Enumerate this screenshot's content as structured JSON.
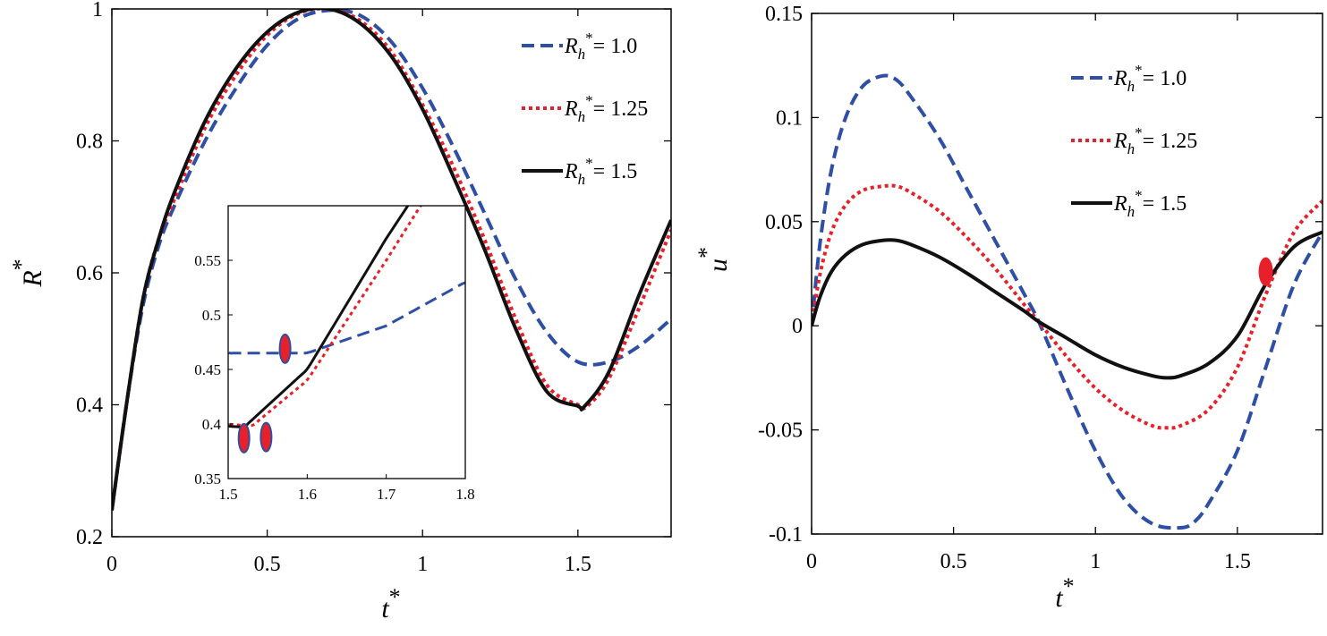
{
  "chart_data": [
    {
      "type": "line",
      "panel": "left",
      "xlabel": "t",
      "xlabel_sup": "*",
      "ylabel": "R",
      "ylabel_sup": "*",
      "xlim": [
        0,
        1.8
      ],
      "ylim": [
        0.2,
        1.0
      ],
      "xticks": [
        0,
        0.5,
        1,
        1.5
      ],
      "xtick_labels": [
        "0",
        "0.5",
        "1",
        "1.5"
      ],
      "yticks": [
        0.2,
        0.4,
        0.6,
        0.8,
        1.0
      ],
      "ytick_labels": [
        "0.2",
        "0.4",
        "0.6",
        "0.8",
        "1"
      ],
      "legend_position": "top-right",
      "legend_title_var": "R",
      "legend_title_sub": "h",
      "legend_title_sup": "*",
      "series": [
        {
          "name": "= 1.0",
          "label": "R_h* = 1.0",
          "color": "#2e4fa3",
          "style": "dashed",
          "x": [
            0,
            0.05,
            0.1,
            0.15,
            0.2,
            0.3,
            0.4,
            0.5,
            0.6,
            0.7,
            0.8,
            0.9,
            1.0,
            1.1,
            1.2,
            1.3,
            1.4,
            1.5,
            1.6,
            1.7,
            1.8
          ],
          "y": [
            0.24,
            0.41,
            0.55,
            0.64,
            0.7,
            0.8,
            0.88,
            0.945,
            0.985,
            0.998,
            0.99,
            0.95,
            0.88,
            0.79,
            0.69,
            0.59,
            0.51,
            0.465,
            0.465,
            0.49,
            0.53
          ]
        },
        {
          "name": "= 1.25",
          "label": "R_h* = 1.25",
          "color": "#e8202a",
          "style": "dotted",
          "x": [
            0,
            0.05,
            0.1,
            0.15,
            0.2,
            0.3,
            0.4,
            0.5,
            0.6,
            0.7,
            0.8,
            0.9,
            1.0,
            1.1,
            1.2,
            1.3,
            1.4,
            1.5,
            1.53,
            1.6,
            1.7,
            1.8
          ],
          "y": [
            0.24,
            0.41,
            0.56,
            0.65,
            0.71,
            0.82,
            0.9,
            0.96,
            0.993,
            1.0,
            0.982,
            0.935,
            0.855,
            0.76,
            0.65,
            0.53,
            0.43,
            0.4,
            0.398,
            0.44,
            0.55,
            0.665
          ]
        },
        {
          "name": "= 1.5",
          "label": "R_h* = 1.5",
          "color": "#111111",
          "style": "solid",
          "x": [
            0,
            0.05,
            0.1,
            0.15,
            0.2,
            0.3,
            0.4,
            0.5,
            0.6,
            0.7,
            0.8,
            0.9,
            1.0,
            1.1,
            1.2,
            1.3,
            1.4,
            1.5,
            1.52,
            1.6,
            1.7,
            1.8
          ],
          "y": [
            0.24,
            0.41,
            0.56,
            0.65,
            0.72,
            0.83,
            0.91,
            0.965,
            0.995,
            1.0,
            0.978,
            0.928,
            0.848,
            0.745,
            0.635,
            0.515,
            0.42,
            0.398,
            0.397,
            0.45,
            0.57,
            0.68
          ]
        }
      ],
      "inset": {
        "xlim": [
          1.5,
          1.8
        ],
        "ylim": [
          0.35,
          0.6
        ],
        "xticks": [
          1.5,
          1.6,
          1.7,
          1.8
        ],
        "xtick_labels": [
          "1.5",
          "1.6",
          "1.7",
          "1.8"
        ],
        "yticks": [
          0.35,
          0.4,
          0.45,
          0.5,
          0.55
        ],
        "ytick_labels": [
          "0.35",
          "0.4",
          "0.45",
          "0.5",
          "0.55"
        ],
        "markers": [
          {
            "series": "= 1.0",
            "x": 1.572,
            "y": 0.469
          },
          {
            "series": "= 1.25",
            "x": 1.548,
            "y": 0.388
          },
          {
            "series": "= 1.5",
            "x": 1.52,
            "y": 0.387
          }
        ]
      }
    },
    {
      "type": "line",
      "panel": "right",
      "xlabel": "t",
      "xlabel_sup": "*",
      "ylabel": "u",
      "ylabel_sup": "*",
      "xlim": [
        0,
        1.8
      ],
      "ylim": [
        -0.1,
        0.15
      ],
      "xticks": [
        0,
        0.5,
        1,
        1.5
      ],
      "xtick_labels": [
        "0",
        "0.5",
        "1",
        "1.5"
      ],
      "yticks": [
        -0.1,
        -0.05,
        0,
        0.05,
        0.1,
        0.15
      ],
      "ytick_labels": [
        "-0.1",
        "-0.05",
        "0",
        "0.05",
        "0.1",
        "0.15"
      ],
      "legend_position": "top-right",
      "legend_title_var": "R",
      "legend_title_sub": "h",
      "legend_title_sup": "*",
      "series": [
        {
          "name": "= 1.0",
          "label": "R_h* = 1.0",
          "color": "#2e4fa3",
          "style": "dashed",
          "x": [
            0,
            0.03,
            0.07,
            0.12,
            0.18,
            0.25,
            0.3,
            0.35,
            0.45,
            0.55,
            0.65,
            0.75,
            0.8,
            0.9,
            1.0,
            1.1,
            1.2,
            1.3,
            1.35,
            1.4,
            1.5,
            1.6,
            1.7,
            1.8
          ],
          "y": [
            0.0,
            0.04,
            0.075,
            0.1,
            0.115,
            0.12,
            0.118,
            0.11,
            0.09,
            0.065,
            0.04,
            0.015,
            0.002,
            -0.03,
            -0.06,
            -0.083,
            -0.095,
            -0.097,
            -0.094,
            -0.085,
            -0.06,
            -0.02,
            0.02,
            0.045
          ]
        },
        {
          "name": "= 1.25",
          "label": "R_h* = 1.25",
          "color": "#e8202a",
          "style": "dotted",
          "x": [
            0,
            0.03,
            0.07,
            0.12,
            0.18,
            0.25,
            0.3,
            0.35,
            0.45,
            0.55,
            0.65,
            0.75,
            0.8,
            0.9,
            1.0,
            1.1,
            1.2,
            1.25,
            1.3,
            1.4,
            1.5,
            1.6,
            1.7,
            1.8
          ],
          "y": [
            0.0,
            0.025,
            0.045,
            0.058,
            0.065,
            0.067,
            0.067,
            0.064,
            0.055,
            0.042,
            0.027,
            0.01,
            0.002,
            -0.015,
            -0.03,
            -0.041,
            -0.048,
            -0.049,
            -0.048,
            -0.04,
            -0.02,
            0.015,
            0.045,
            0.06
          ]
        },
        {
          "name": "= 1.5",
          "label": "R_h* = 1.5",
          "color": "#111111",
          "style": "solid",
          "x": [
            0,
            0.03,
            0.07,
            0.12,
            0.18,
            0.25,
            0.3,
            0.35,
            0.45,
            0.55,
            0.65,
            0.75,
            0.8,
            0.9,
            1.0,
            1.1,
            1.2,
            1.25,
            1.3,
            1.4,
            1.5,
            1.6,
            1.7,
            1.8
          ],
          "y": [
            0.0,
            0.014,
            0.026,
            0.034,
            0.039,
            0.041,
            0.041,
            0.039,
            0.033,
            0.025,
            0.016,
            0.007,
            0.002,
            -0.006,
            -0.014,
            -0.02,
            -0.024,
            -0.025,
            -0.024,
            -0.018,
            -0.005,
            0.02,
            0.038,
            0.045
          ]
        }
      ],
      "markers": [
        {
          "series": "= 1.25",
          "x": 1.6,
          "y": 0.026
        }
      ]
    }
  ]
}
